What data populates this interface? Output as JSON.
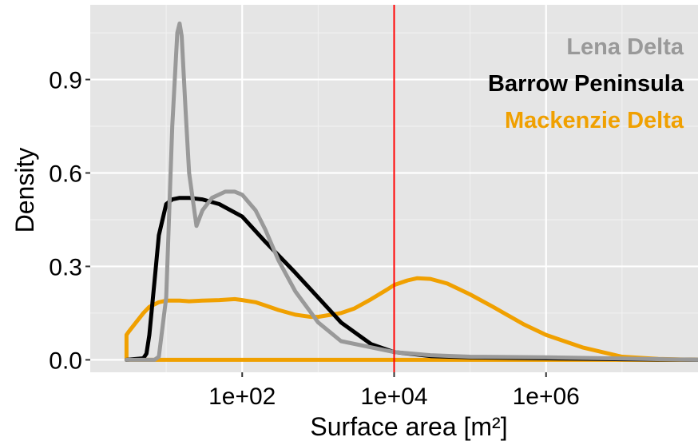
{
  "chart_data": {
    "type": "line",
    "title": "",
    "xlabel": "Surface area [m²]",
    "ylabel": "Density",
    "x_scale": "log10",
    "xlim": [
      1,
      100000000
    ],
    "ylim": [
      -0.04,
      1.14
    ],
    "x_ticks": [
      {
        "value": 100,
        "label": "1e+02"
      },
      {
        "value": 10000,
        "label": "1e+04"
      },
      {
        "value": 1000000,
        "label": "1e+06"
      }
    ],
    "y_ticks": [
      {
        "value": 0.0,
        "label": "0.0"
      },
      {
        "value": 0.3,
        "label": "0.3"
      },
      {
        "value": 0.6,
        "label": "0.6"
      },
      {
        "value": 0.9,
        "label": "0.9"
      }
    ],
    "grid": true,
    "legend_position": "top-right",
    "vline": {
      "x": 10000,
      "color": "#ff0000"
    },
    "series": [
      {
        "name": "Mackenzie Delta",
        "color": "#f0a000",
        "x": [
          3,
          3,
          3.2,
          4,
          5,
          6,
          8,
          10,
          15,
          20,
          30,
          50,
          80,
          100,
          150,
          200,
          300,
          500,
          800,
          1000,
          2000,
          3000,
          5000,
          8000,
          10000,
          15000,
          20000,
          30000,
          50000,
          100000,
          200000,
          500000,
          1000000,
          3000000,
          10000000,
          30000000,
          100000000,
          3
        ],
        "values": [
          0.0,
          0.08,
          0.09,
          0.12,
          0.15,
          0.17,
          0.185,
          0.19,
          0.19,
          0.188,
          0.19,
          0.192,
          0.195,
          0.192,
          0.185,
          0.175,
          0.16,
          0.145,
          0.138,
          0.138,
          0.15,
          0.165,
          0.195,
          0.225,
          0.24,
          0.255,
          0.262,
          0.26,
          0.245,
          0.21,
          0.17,
          0.115,
          0.08,
          0.04,
          0.01,
          0.003,
          0.0,
          0.0
        ]
      },
      {
        "name": "Barrow Peninsula",
        "color": "#000000",
        "x": [
          3,
          5,
          5.5,
          6,
          7,
          8,
          10,
          12,
          15,
          20,
          30,
          50,
          100,
          200,
          500,
          1000,
          2000,
          5000,
          10000,
          30000,
          100000,
          1000000,
          10000000,
          100000000
        ],
        "values": [
          0.0,
          0.005,
          0.02,
          0.08,
          0.25,
          0.4,
          0.5,
          0.515,
          0.52,
          0.52,
          0.515,
          0.5,
          0.46,
          0.38,
          0.28,
          0.2,
          0.12,
          0.05,
          0.025,
          0.012,
          0.008,
          0.005,
          0.002,
          0.0
        ]
      },
      {
        "name": "Lena Delta",
        "color": "#999999",
        "x": [
          3,
          7,
          8,
          10,
          12,
          14,
          15,
          16,
          18,
          20,
          25,
          30,
          40,
          60,
          80,
          100,
          150,
          200,
          300,
          500,
          1000,
          2000,
          5000,
          10000,
          30000,
          100000,
          1000000,
          10000000,
          100000000
        ],
        "values": [
          0.0,
          0.0,
          0.01,
          0.2,
          0.75,
          1.05,
          1.08,
          1.04,
          0.8,
          0.6,
          0.43,
          0.48,
          0.52,
          0.54,
          0.54,
          0.53,
          0.48,
          0.42,
          0.32,
          0.22,
          0.12,
          0.06,
          0.04,
          0.025,
          0.015,
          0.01,
          0.008,
          0.004,
          0.0
        ]
      }
    ],
    "legend_order": [
      "Lena Delta",
      "Barrow Peninsula",
      "Mackenzie Delta"
    ]
  }
}
